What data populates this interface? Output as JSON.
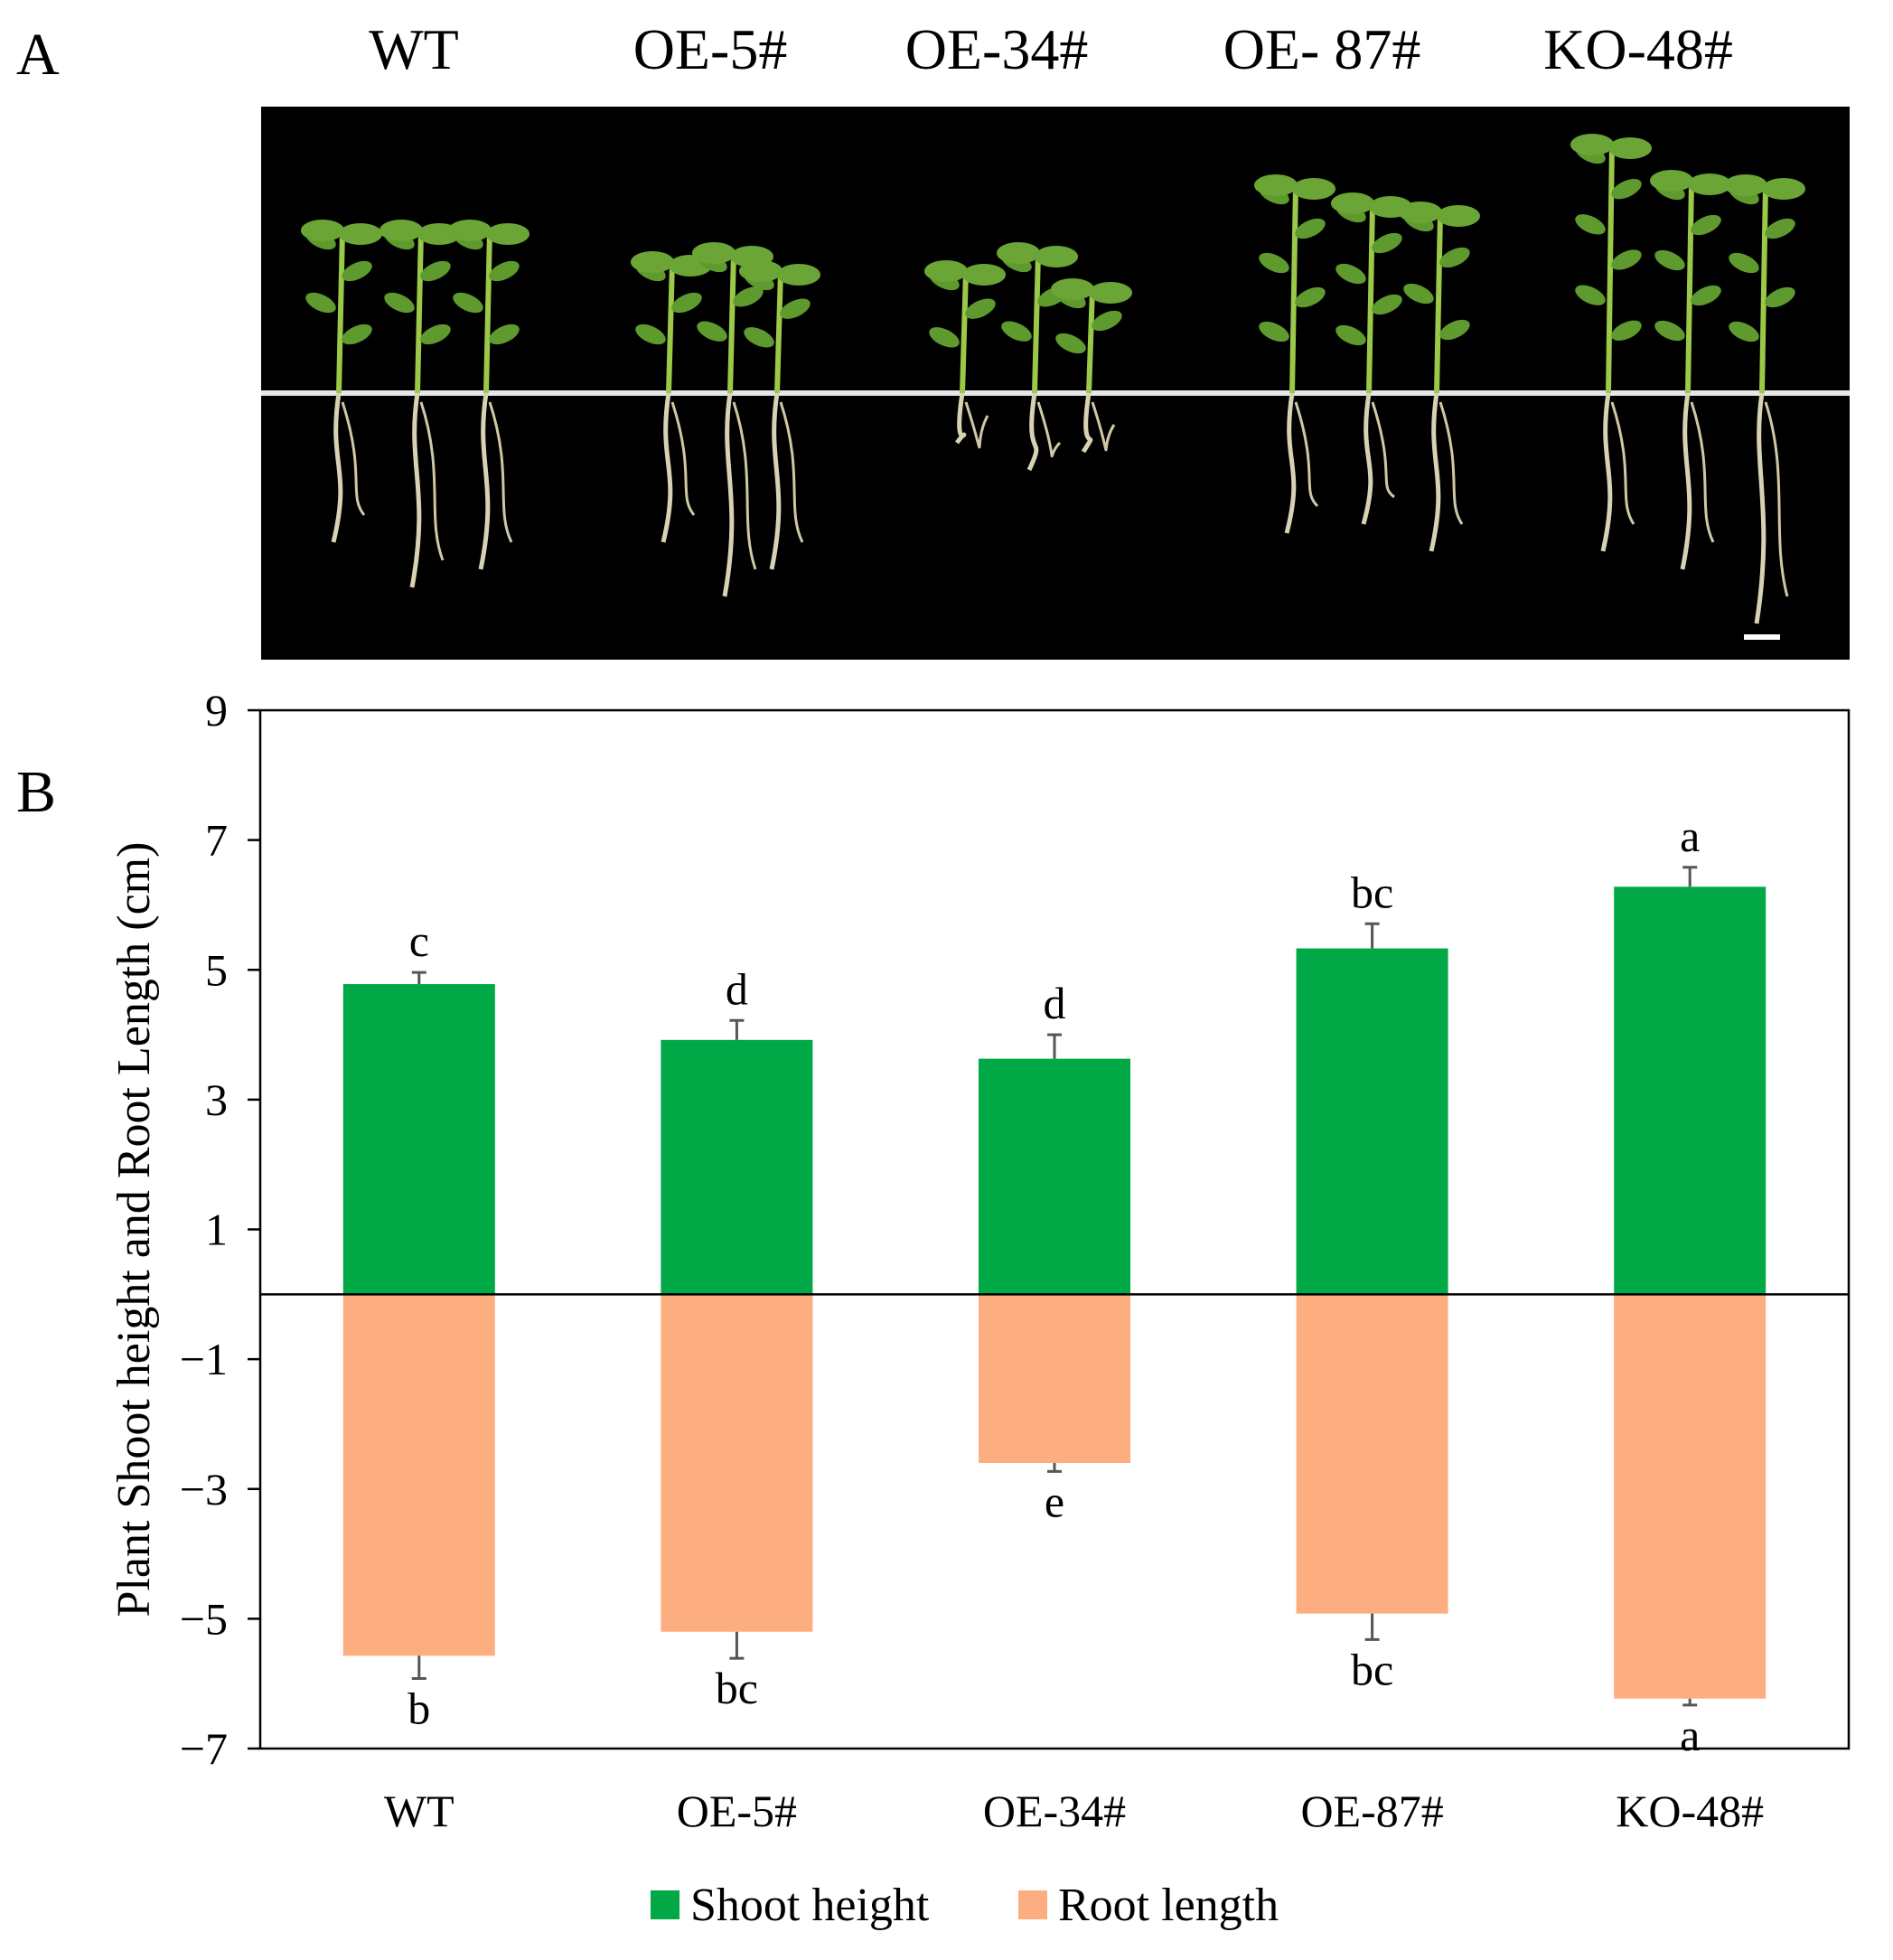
{
  "panel_a": {
    "label": "A",
    "genotype_labels": [
      "WT",
      "OE-5#",
      "OE-34#",
      "OE- 87#",
      "KO-48#"
    ],
    "photo_background": "#000000",
    "scale_bar": true
  },
  "panel_b": {
    "label": "B"
  },
  "chart_data": {
    "type": "bar",
    "stacked": "diverging",
    "categories": [
      "WT",
      "OE-5#",
      "OE-34#",
      "OE-87#",
      "KO-48#"
    ],
    "series": [
      {
        "name": "Shoot height",
        "color": "#00a846",
        "values": [
          4.78,
          3.92,
          3.63,
          5.33,
          6.28
        ],
        "errors": [
          0.18,
          0.3,
          0.37,
          0.38,
          0.3
        ],
        "letters": [
          "c",
          "d",
          "d",
          "bc",
          "a"
        ]
      },
      {
        "name": "Root length",
        "color": "#fdae81",
        "values": [
          -5.57,
          -5.2,
          -2.6,
          -4.92,
          -6.23
        ],
        "errors": [
          0.35,
          0.41,
          0.13,
          0.4,
          0.1
        ],
        "letters": [
          "b",
          "bc",
          "e",
          "bc",
          "a"
        ]
      }
    ],
    "ylabel": "Plant Shoot height and Root Length (cm)",
    "ylim": [
      -7,
      9
    ],
    "yticks": [
      -7,
      -5,
      -3,
      -1,
      1,
      3,
      5,
      7,
      9
    ],
    "ytick_labels": [
      "−7",
      "−5",
      "−3",
      "−1",
      "1",
      "3",
      "5",
      "7",
      "9"
    ],
    "grid": false,
    "legend_position": "bottom-center"
  }
}
